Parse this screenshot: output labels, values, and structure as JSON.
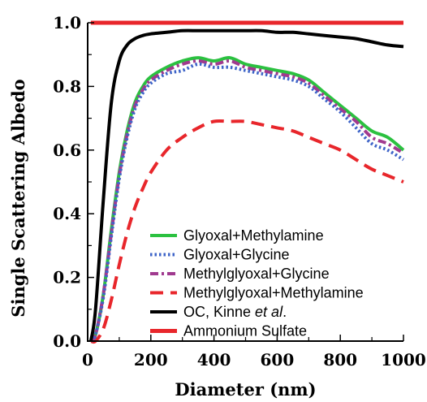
{
  "chart_data": {
    "type": "line",
    "xlabel": "Diameter (nm)",
    "ylabel": "Single Scattering Albedo",
    "xlim": [
      0,
      1000
    ],
    "ylim": [
      0,
      1.0
    ],
    "x_ticks": [
      "0",
      "200",
      "400",
      "600",
      "800",
      "1000"
    ],
    "y_ticks": [
      "0.0",
      "0.2",
      "0.4",
      "0.6",
      "0.8",
      "1.0"
    ],
    "grid": false,
    "legend_position": "bottom-right",
    "x": [
      10,
      25,
      50,
      75,
      100,
      125,
      150,
      175,
      200,
      250,
      300,
      350,
      400,
      450,
      500,
      550,
      600,
      650,
      700,
      750,
      800,
      850,
      900,
      950,
      1000
    ],
    "series": [
      {
        "name": "Glyoxal+Methylamine",
        "color": "#2bc140",
        "dash": "solid",
        "values": [
          0.0,
          0.02,
          0.15,
          0.35,
          0.53,
          0.66,
          0.75,
          0.8,
          0.83,
          0.86,
          0.88,
          0.89,
          0.88,
          0.89,
          0.87,
          0.86,
          0.85,
          0.84,
          0.82,
          0.78,
          0.74,
          0.7,
          0.66,
          0.64,
          0.6
        ]
      },
      {
        "name": "Glyoxal+Glycine",
        "color": "#3e64c8",
        "dash": "dot",
        "values": [
          0.0,
          0.02,
          0.14,
          0.33,
          0.51,
          0.64,
          0.73,
          0.78,
          0.81,
          0.84,
          0.85,
          0.87,
          0.86,
          0.86,
          0.85,
          0.84,
          0.83,
          0.82,
          0.8,
          0.76,
          0.72,
          0.67,
          0.62,
          0.6,
          0.57
        ]
      },
      {
        "name": "Methylglyoxal+Glycine",
        "color": "#a03a8f",
        "dash": "dashdot",
        "values": [
          0.0,
          0.02,
          0.15,
          0.34,
          0.52,
          0.65,
          0.74,
          0.79,
          0.82,
          0.85,
          0.87,
          0.88,
          0.87,
          0.88,
          0.86,
          0.85,
          0.84,
          0.83,
          0.81,
          0.77,
          0.73,
          0.69,
          0.64,
          0.62,
          0.59
        ]
      },
      {
        "name": "Methylglyoxal+Methylamine",
        "color": "#e8262b",
        "dash": "longdash",
        "values": [
          0.0,
          0.0,
          0.04,
          0.13,
          0.24,
          0.34,
          0.42,
          0.48,
          0.53,
          0.6,
          0.64,
          0.67,
          0.69,
          0.69,
          0.69,
          0.68,
          0.67,
          0.66,
          0.64,
          0.62,
          0.6,
          0.57,
          0.54,
          0.52,
          0.5
        ]
      },
      {
        "name": "OC, Kinne et al.",
        "name_parts": [
          "OC, Kinne ",
          "et al",
          "."
        ],
        "color": "#000000",
        "dash": "solid",
        "values": [
          0.0,
          0.1,
          0.45,
          0.75,
          0.88,
          0.93,
          0.95,
          0.96,
          0.965,
          0.97,
          0.975,
          0.975,
          0.975,
          0.975,
          0.975,
          0.975,
          0.97,
          0.97,
          0.965,
          0.96,
          0.955,
          0.95,
          0.94,
          0.93,
          0.925
        ]
      },
      {
        "name": "Ammonium Sulfate",
        "color": "#e8262b",
        "dash": "solid",
        "values": [
          1.0,
          1.0,
          1.0,
          1.0,
          1.0,
          1.0,
          1.0,
          1.0,
          1.0,
          1.0,
          1.0,
          1.0,
          1.0,
          1.0,
          1.0,
          1.0,
          1.0,
          1.0,
          1.0,
          1.0,
          1.0,
          1.0,
          1.0,
          1.0,
          1.0
        ]
      }
    ]
  }
}
